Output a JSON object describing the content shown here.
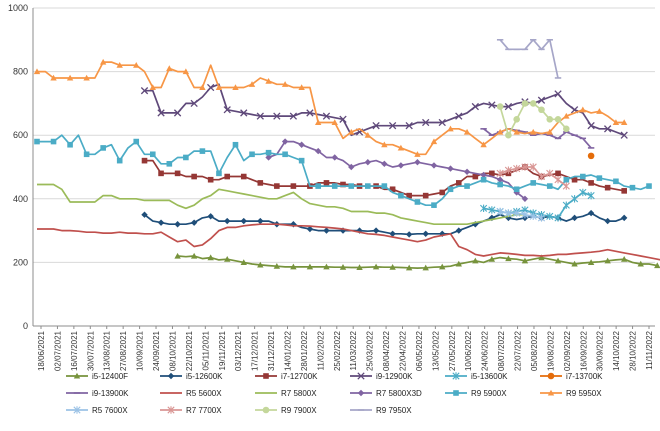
{
  "chart_data": {
    "type": "line",
    "ylim": [
      0,
      1000
    ],
    "yticks": [
      "0",
      "200",
      "400",
      "600",
      "800",
      "1000"
    ],
    "x_tick_labels": [
      "18/06/2021",
      "02/07/2021",
      "16/07/2021",
      "30/07/2021",
      "13/08/2021",
      "27/08/2021",
      "10/09/2021",
      "24/09/2021",
      "08/10/2021",
      "22/10/2021",
      "05/11/2021",
      "19/11/2021",
      "03/12/2021",
      "17/12/2021",
      "31/12/2021",
      "14/01/2022",
      "28/01/2022",
      "11/02/2022",
      "25/02/2022",
      "11/03/2022",
      "25/03/2022",
      "08/04/2022",
      "22/04/2022",
      "06/05/2022",
      "13/05/2022",
      "27/05/2022",
      "10/06/2022",
      "24/06/2022",
      "08/07/2022",
      "22/07/2022",
      "05/08/2022",
      "19/08/2022",
      "02/09/2022",
      "16/09/2022",
      "30/09/2022",
      "14/10/2022",
      "28/10/2022",
      "11/11/2022"
    ],
    "grid": true,
    "legend_position": "bottom",
    "series": [
      {
        "name": "i5-12400F",
        "color": "#77933c",
        "marker": "triangle",
        "start": 17,
        "values": [
          220,
          218,
          220,
          212,
          215,
          208,
          210,
          205,
          200,
          195,
          192,
          190,
          188,
          186,
          186,
          186,
          186,
          186,
          186,
          185,
          185,
          184,
          184,
          185,
          186,
          185,
          185,
          184,
          183,
          182,
          183,
          185,
          186,
          188,
          195,
          200,
          205,
          200,
          210,
          215,
          212,
          210,
          205,
          210,
          215,
          210,
          205,
          200,
          195,
          198,
          200,
          202,
          205,
          208,
          210,
          200,
          195,
          195,
          190
        ]
      },
      {
        "name": "i5-12600K",
        "color": "#1f4e79",
        "marker": "diamond",
        "start": 13,
        "values": [
          350,
          330,
          325,
          320,
          320,
          320,
          325,
          340,
          345,
          330,
          330,
          330,
          330,
          330,
          330,
          330,
          320,
          320,
          320,
          310,
          305,
          300,
          300,
          300,
          300,
          300,
          300,
          298,
          300,
          295,
          290,
          290,
          288,
          290,
          290,
          290,
          290,
          290,
          300,
          310,
          320,
          330,
          340,
          350,
          340,
          335,
          340,
          345,
          340,
          345,
          340,
          330,
          340,
          345,
          355,
          340,
          330,
          330,
          340
        ]
      },
      {
        "name": "i7-12700K",
        "color": "#953735",
        "marker": "square",
        "start": 13,
        "values": [
          520,
          520,
          480,
          480,
          480,
          470,
          470,
          470,
          460,
          460,
          470,
          470,
          470,
          460,
          450,
          445,
          440,
          440,
          440,
          440,
          440,
          450,
          450,
          450,
          445,
          445,
          440,
          440,
          440,
          430,
          430,
          420,
          410,
          410,
          410,
          415,
          420,
          440,
          450,
          470,
          470,
          480,
          480,
          475,
          480,
          490,
          500,
          480,
          470,
          475,
          480,
          470,
          460,
          460,
          450,
          440,
          435,
          430,
          425
        ]
      },
      {
        "name": "i9-12900K",
        "color": "#5f497a",
        "marker": "x",
        "start": 13,
        "values": [
          740,
          740,
          670,
          670,
          670,
          700,
          700,
          720,
          750,
          760,
          680,
          675,
          670,
          665,
          660,
          660,
          660,
          660,
          660,
          670,
          670,
          665,
          660,
          655,
          650,
          600,
          610,
          620,
          630,
          630,
          630,
          630,
          630,
          640,
          640,
          640,
          640,
          650,
          660,
          670,
          690,
          700,
          695,
          690,
          690,
          700,
          705,
          700,
          710,
          720,
          730,
          700,
          680,
          670,
          630,
          620,
          620,
          610,
          600
        ]
      },
      {
        "name": "i5-13600K",
        "color": "#4bacc6",
        "marker": "asterisk",
        "start": 54,
        "values": [
          370,
          365,
          360,
          355,
          360,
          365,
          355,
          350,
          345,
          340,
          380,
          400,
          420,
          410
        ]
      },
      {
        "name": "i7-13700K",
        "color": "#e46c0a",
        "marker": "circle",
        "start": 67,
        "values": [
          535
        ]
      },
      {
        "name": "i9-13900K",
        "color": "#8064a2",
        "marker": "dash",
        "start": 54,
        "values": [
          620,
          600,
          610,
          620,
          615,
          610,
          600,
          605,
          600,
          590,
          610,
          600,
          590,
          560
        ]
      },
      {
        "name": "R5 5600X",
        "color": "#c0504d",
        "marker": "none",
        "start": 0,
        "values": [
          305,
          305,
          305,
          300,
          300,
          298,
          295,
          295,
          292,
          292,
          295,
          292,
          292,
          290,
          290,
          295,
          280,
          265,
          270,
          250,
          255,
          275,
          300,
          310,
          310,
          315,
          318,
          320,
          320,
          320,
          318,
          315,
          315,
          314,
          312,
          310,
          308,
          305,
          300,
          295,
          290,
          288,
          285,
          280,
          275,
          270,
          265,
          270,
          280,
          285,
          290,
          250,
          240,
          225,
          220,
          225,
          230,
          228,
          225,
          222,
          222,
          220,
          222,
          225,
          225,
          228,
          230,
          232,
          235,
          240,
          235,
          230,
          225,
          220,
          215,
          210,
          205,
          200,
          200
        ]
      },
      {
        "name": "R7 5800X",
        "color": "#9bbb59",
        "marker": "none",
        "start": 0,
        "values": [
          445,
          445,
          445,
          430,
          390,
          390,
          390,
          390,
          410,
          410,
          400,
          400,
          400,
          395,
          395,
          395,
          395,
          380,
          370,
          380,
          400,
          410,
          430,
          425,
          420,
          415,
          410,
          405,
          400,
          400,
          410,
          420,
          400,
          385,
          380,
          375,
          375,
          370,
          360,
          360,
          360,
          355,
          355,
          350,
          340,
          335,
          330,
          325,
          320,
          320,
          320,
          320,
          320,
          325,
          330,
          335,
          340,
          345,
          350,
          350
        ]
      },
      {
        "name": "R7 5800X3D",
        "color": "#8064a2",
        "marker": "diamond",
        "start": 28,
        "values": [
          530,
          540,
          580,
          580,
          570,
          560,
          550,
          530,
          530,
          520,
          500,
          510,
          515,
          520,
          510,
          500,
          505,
          510,
          515,
          510,
          505,
          500,
          495,
          490,
          485,
          480,
          475,
          470,
          460,
          450,
          420,
          400
        ]
      },
      {
        "name": "R9 5900X",
        "color": "#4bacc6",
        "marker": "square",
        "start": 0,
        "values": [
          580,
          580,
          580,
          600,
          570,
          600,
          540,
          540,
          560,
          570,
          520,
          560,
          580,
          540,
          540,
          510,
          510,
          530,
          530,
          550,
          550,
          550,
          480,
          530,
          570,
          520,
          540,
          540,
          545,
          540,
          540,
          530,
          520,
          440,
          440,
          440,
          440,
          440,
          440,
          440,
          440,
          440,
          440,
          420,
          410,
          400,
          390,
          380,
          380,
          400,
          430,
          440,
          440,
          450,
          460,
          450,
          445,
          440,
          430,
          440,
          450,
          445,
          440,
          430,
          460,
          470,
          470,
          475,
          465,
          460,
          455,
          440,
          435,
          430,
          440
        ]
      },
      {
        "name": "R9 5950X",
        "color": "#f79646",
        "marker": "triangle",
        "start": 0,
        "values": [
          800,
          800,
          780,
          780,
          780,
          780,
          780,
          780,
          830,
          830,
          820,
          820,
          820,
          800,
          750,
          750,
          810,
          800,
          800,
          750,
          750,
          820,
          750,
          750,
          750,
          750,
          760,
          780,
          770,
          760,
          760,
          750,
          750,
          750,
          640,
          640,
          640,
          590,
          610,
          620,
          600,
          580,
          570,
          570,
          560,
          550,
          540,
          540,
          580,
          600,
          620,
          620,
          610,
          590,
          570,
          590,
          610,
          620,
          610,
          605,
          610,
          605,
          610,
          640,
          660,
          670,
          680,
          670,
          675,
          660,
          640,
          640
        ]
      },
      {
        "name": "R5 7600X",
        "color": "#9bc2e6",
        "marker": "asterisk",
        "start": 56,
        "values": [
          360,
          355,
          355,
          350,
          345,
          340
        ]
      },
      {
        "name": "R7 7700X",
        "color": "#d99694",
        "marker": "asterisk",
        "start": 56,
        "values": [
          480,
          490,
          495,
          500,
          500,
          470,
          480,
          460,
          440
        ]
      },
      {
        "name": "R9 7900X",
        "color": "#c4d79b",
        "marker": "circle",
        "start": 56,
        "values": [
          690,
          600,
          650,
          700,
          700,
          680,
          650,
          650,
          620
        ]
      },
      {
        "name": "R9 7950X",
        "color": "#a6a6c8",
        "marker": "dash",
        "start": 56,
        "values": [
          900,
          870,
          870,
          870,
          900,
          870,
          900,
          780
        ]
      }
    ]
  }
}
